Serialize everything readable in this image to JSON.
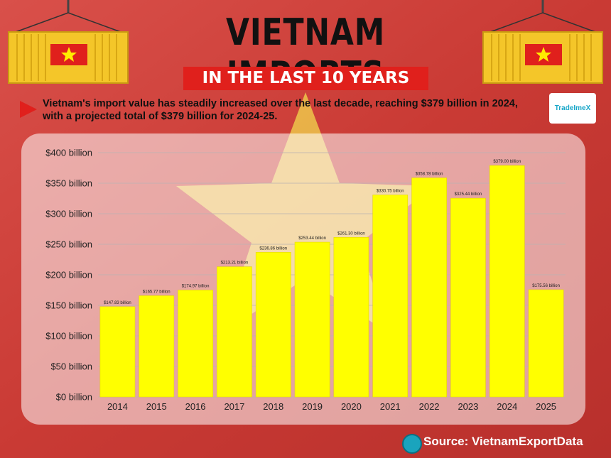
{
  "header": {
    "title": "VIETNAM IMPORTS",
    "subtitle": "IN THE LAST 10 YEARS",
    "description": "Vietnam's import value has steadily increased over the last decade, reaching $379 billion in 2024, with a projected total of $379 billion for 2024-25."
  },
  "logo": {
    "text": "TradeImeX"
  },
  "footer": {
    "source": "Source: VietnamExportData"
  },
  "icons": {
    "bullet": "red-arrow-icon",
    "source": "globe-icon",
    "decor": "cargo-container-vietnam-flag"
  },
  "colors": {
    "bar": "#ffff00",
    "bar_stroke": "#e6d800",
    "accent_red": "#e0201c",
    "star": "#f4e25a"
  },
  "chart_data": {
    "type": "bar",
    "categories": [
      "2014",
      "2015",
      "2016",
      "2017",
      "2018",
      "2019",
      "2020",
      "2021",
      "2022",
      "2023",
      "2024",
      "2025"
    ],
    "values": [
      147.83,
      165.77,
      174.97,
      213.21,
      236.86,
      253.44,
      261.3,
      330.75,
      358.78,
      325.44,
      379.0,
      175.56
    ],
    "data_labels": [
      "$147.83 billion",
      "$165.77 billion",
      "$174.97 billion",
      "$213.21 billion",
      "$236.86 billion",
      "$253.44 billion",
      "$261.30 billion",
      "$330.75 billion",
      "$358.78 billion",
      "$325.44 billion",
      "$379.00 billion",
      "$175.56 billion"
    ],
    "y_ticks": [
      "$0 billion",
      "$50 billion",
      "$100 billion",
      "$150 billion",
      "$200 billion",
      "$250 billion",
      "$300 billion",
      "$350 billion",
      "$400 billion"
    ],
    "ylim": [
      0,
      400
    ],
    "grid": true,
    "xlabel": "",
    "ylabel": ""
  }
}
